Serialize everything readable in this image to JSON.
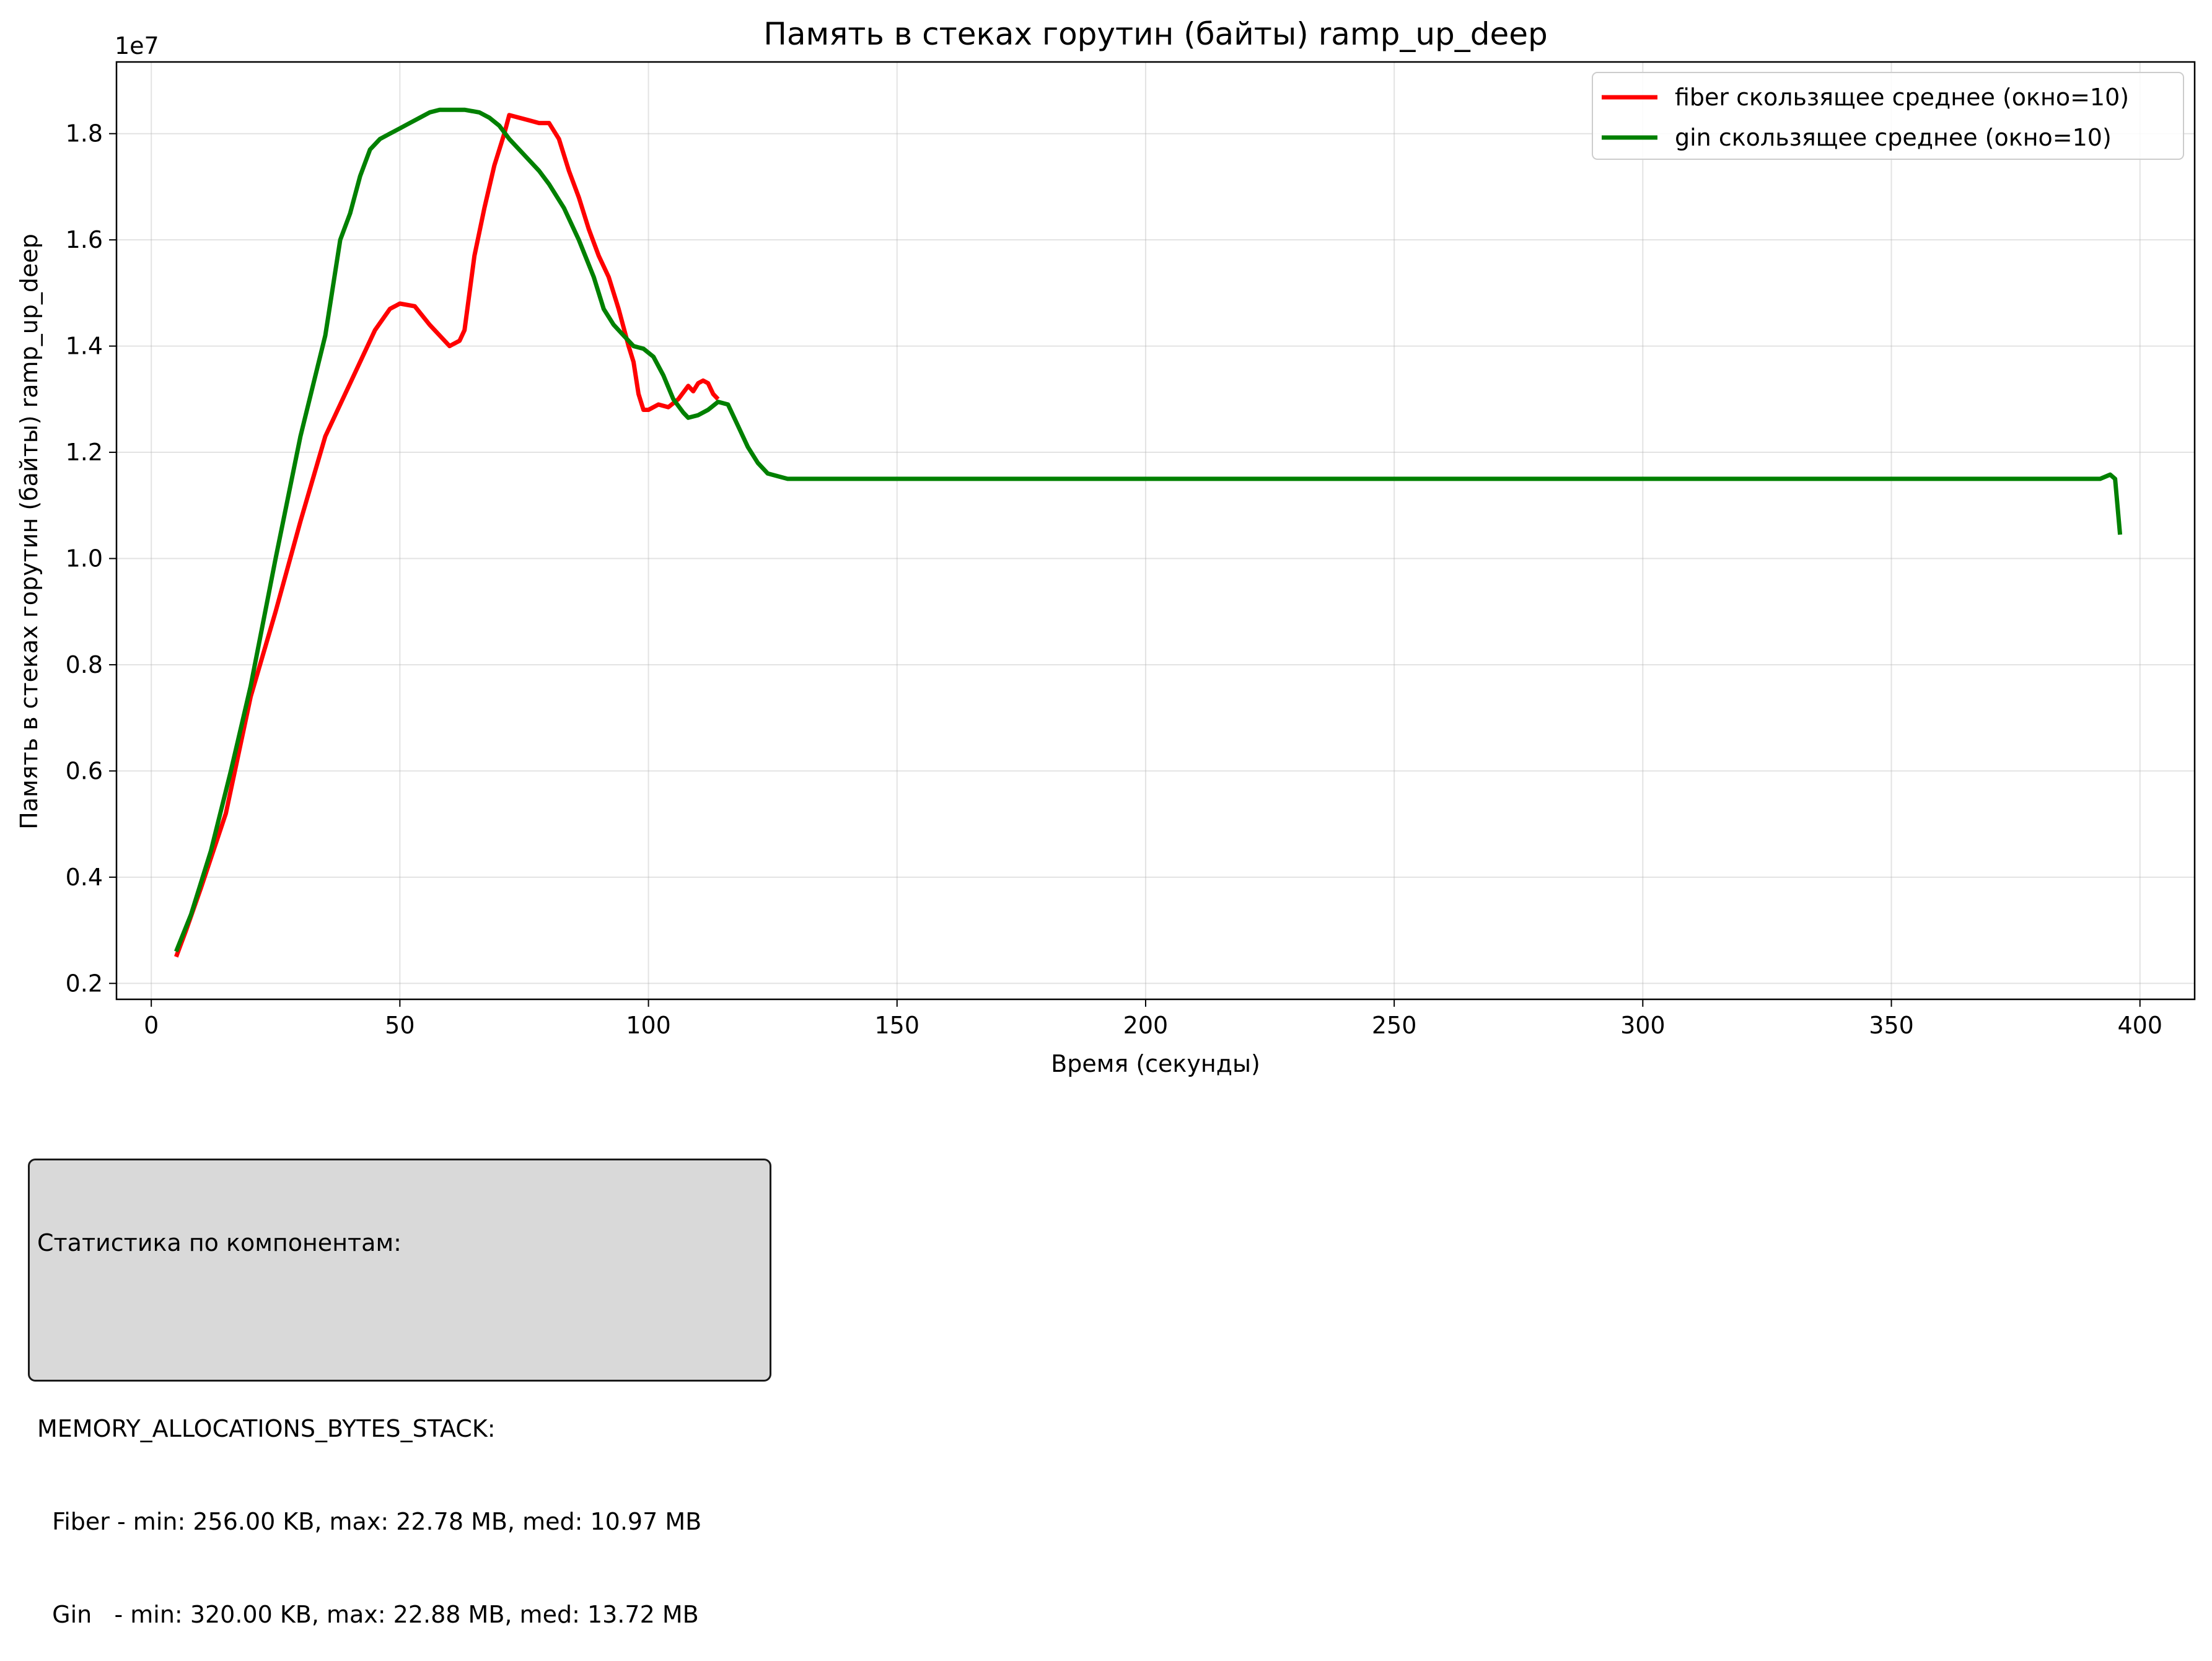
{
  "chart_data": {
    "type": "line",
    "title": "Память в стеках горутин (байты) ramp_up_deep",
    "xlabel": "Время (секунды)",
    "ylabel": "Память в стеках горутин (байты) ramp_up_deep",
    "y_offset_text": "1e7",
    "xlim": [
      -7,
      411
    ],
    "ylim": [
      0.17,
      1.935
    ],
    "x_ticks": [
      0,
      50,
      100,
      150,
      200,
      250,
      300,
      350,
      400
    ],
    "y_ticks": [
      0.2,
      0.4,
      0.6,
      0.8,
      1.0,
      1.2,
      1.4,
      1.6,
      1.8
    ],
    "x_tick_labels": [
      "0",
      "50",
      "100",
      "150",
      "200",
      "250",
      "300",
      "350",
      "400"
    ],
    "y_tick_labels": [
      "0.2",
      "0.4",
      "0.6",
      "0.8",
      "1.0",
      "1.2",
      "1.4",
      "1.6",
      "1.8"
    ],
    "grid": true,
    "legend_position": "top-right",
    "series": [
      {
        "name": "fiber скользящее среднее (окно=10)",
        "color": "#ff0000",
        "points": [
          [
            5,
            0.25
          ],
          [
            7,
            0.3
          ],
          [
            10,
            0.38
          ],
          [
            15,
            0.52
          ],
          [
            20,
            0.74
          ],
          [
            25,
            0.9
          ],
          [
            30,
            1.07
          ],
          [
            35,
            1.23
          ],
          [
            40,
            1.33
          ],
          [
            45,
            1.43
          ],
          [
            48,
            1.47
          ],
          [
            50,
            1.48
          ],
          [
            53,
            1.475
          ],
          [
            56,
            1.44
          ],
          [
            58,
            1.42
          ],
          [
            60,
            1.4
          ],
          [
            62,
            1.41
          ],
          [
            63,
            1.43
          ],
          [
            65,
            1.57
          ],
          [
            67,
            1.66
          ],
          [
            69,
            1.74
          ],
          [
            71,
            1.8
          ],
          [
            72,
            1.835
          ],
          [
            74,
            1.83
          ],
          [
            76,
            1.825
          ],
          [
            78,
            1.82
          ],
          [
            80,
            1.82
          ],
          [
            82,
            1.79
          ],
          [
            84,
            1.73
          ],
          [
            86,
            1.68
          ],
          [
            88,
            1.62
          ],
          [
            90,
            1.57
          ],
          [
            92,
            1.53
          ],
          [
            94,
            1.47
          ],
          [
            96,
            1.4
          ],
          [
            97,
            1.37
          ],
          [
            98,
            1.31
          ],
          [
            99,
            1.28
          ],
          [
            100,
            1.28
          ],
          [
            102,
            1.29
          ],
          [
            104,
            1.285
          ],
          [
            106,
            1.3
          ],
          [
            108,
            1.325
          ],
          [
            109,
            1.315
          ],
          [
            110,
            1.33
          ],
          [
            111,
            1.335
          ],
          [
            112,
            1.33
          ],
          [
            113,
            1.31
          ],
          [
            114,
            1.3
          ]
        ]
      },
      {
        "name": "gin скользящее среднее (окно=10)",
        "color": "#008000",
        "points": [
          [
            5,
            0.26
          ],
          [
            8,
            0.33
          ],
          [
            12,
            0.45
          ],
          [
            16,
            0.6
          ],
          [
            20,
            0.76
          ],
          [
            25,
            1.0
          ],
          [
            30,
            1.23
          ],
          [
            35,
            1.42
          ],
          [
            38,
            1.6
          ],
          [
            40,
            1.65
          ],
          [
            42,
            1.72
          ],
          [
            44,
            1.77
          ],
          [
            46,
            1.79
          ],
          [
            48,
            1.8
          ],
          [
            50,
            1.81
          ],
          [
            52,
            1.82
          ],
          [
            54,
            1.83
          ],
          [
            56,
            1.84
          ],
          [
            58,
            1.845
          ],
          [
            60,
            1.845
          ],
          [
            63,
            1.845
          ],
          [
            66,
            1.84
          ],
          [
            68,
            1.83
          ],
          [
            70,
            1.815
          ],
          [
            72,
            1.79
          ],
          [
            75,
            1.76
          ],
          [
            78,
            1.73
          ],
          [
            80,
            1.705
          ],
          [
            83,
            1.66
          ],
          [
            86,
            1.6
          ],
          [
            89,
            1.53
          ],
          [
            91,
            1.47
          ],
          [
            93,
            1.44
          ],
          [
            95,
            1.42
          ],
          [
            97,
            1.4
          ],
          [
            99,
            1.395
          ],
          [
            101,
            1.38
          ],
          [
            103,
            1.345
          ],
          [
            105,
            1.3
          ],
          [
            107,
            1.275
          ],
          [
            108,
            1.265
          ],
          [
            110,
            1.27
          ],
          [
            112,
            1.28
          ],
          [
            114,
            1.295
          ],
          [
            116,
            1.29
          ],
          [
            118,
            1.25
          ],
          [
            120,
            1.21
          ],
          [
            122,
            1.18
          ],
          [
            124,
            1.16
          ],
          [
            126,
            1.155
          ],
          [
            128,
            1.15
          ],
          [
            392,
            1.15
          ],
          [
            394,
            1.158
          ],
          [
            395,
            1.15
          ],
          [
            396,
            1.045
          ]
        ]
      }
    ]
  },
  "stats_box": {
    "lines": [
      "Статистика по компонентам:",
      "",
      "MEMORY_ALLOCATIONS_BYTES_STACK:",
      "  Fiber - min: 256.00 KB, max: 22.78 MB, med: 10.97 MB",
      "  Gin   - min: 320.00 KB, max: 22.88 MB, med: 13.72 MB"
    ]
  }
}
